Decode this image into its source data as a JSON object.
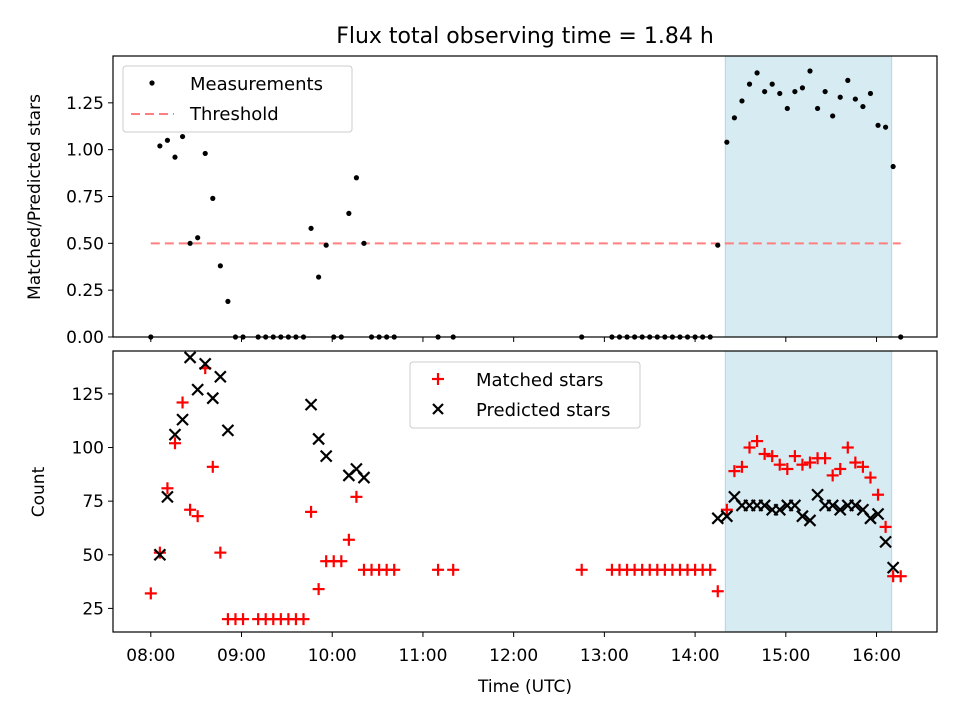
{
  "chart_data": [
    {
      "type": "scatter",
      "title": "Flux total observing time = 1.84 h",
      "ylabel": "Matched/Predicted stars",
      "ylim": [
        0,
        1.5
      ],
      "yticks": [
        "0.00",
        "0.25",
        "0.50",
        "0.75",
        "1.00",
        "1.25"
      ],
      "threshold": 0.5,
      "highlight_span": [
        "14:20",
        "16:10"
      ],
      "legend": {
        "placement": "top-left",
        "entries": [
          "Measurements",
          "Threshold"
        ]
      },
      "series": [
        {
          "name": "Measurements",
          "points": [
            [
              "08:00",
              0.0
            ],
            [
              "08:06",
              1.02
            ],
            [
              "08:11",
              1.05
            ],
            [
              "08:16",
              0.96
            ],
            [
              "08:21",
              1.07
            ],
            [
              "08:26",
              0.5
            ],
            [
              "08:31",
              0.53
            ],
            [
              "08:36",
              0.98
            ],
            [
              "08:41",
              0.74
            ],
            [
              "08:46",
              0.38
            ],
            [
              "08:51",
              0.19
            ],
            [
              "08:56",
              0.0
            ],
            [
              "09:01",
              0.0
            ],
            [
              "09:11",
              0.0
            ],
            [
              "09:16",
              0.0
            ],
            [
              "09:21",
              0.0
            ],
            [
              "09:26",
              0.0
            ],
            [
              "09:31",
              0.0
            ],
            [
              "09:36",
              0.0
            ],
            [
              "09:41",
              0.0
            ],
            [
              "09:46",
              0.58
            ],
            [
              "09:51",
              0.32
            ],
            [
              "09:56",
              0.49
            ],
            [
              "10:01",
              0.0
            ],
            [
              "10:06",
              0.0
            ],
            [
              "10:11",
              0.66
            ],
            [
              "10:16",
              0.85
            ],
            [
              "10:21",
              0.5
            ],
            [
              "10:26",
              0.0
            ],
            [
              "10:31",
              0.0
            ],
            [
              "10:36",
              0.0
            ],
            [
              "10:41",
              0.0
            ],
            [
              "11:10",
              0.0
            ],
            [
              "11:20",
              0.0
            ],
            [
              "12:45",
              0.0
            ],
            [
              "13:05",
              0.0
            ],
            [
              "13:10",
              0.0
            ],
            [
              "13:15",
              0.0
            ],
            [
              "13:20",
              0.0
            ],
            [
              "13:25",
              0.0
            ],
            [
              "13:30",
              0.0
            ],
            [
              "13:35",
              0.0
            ],
            [
              "13:40",
              0.0
            ],
            [
              "13:45",
              0.0
            ],
            [
              "13:50",
              0.0
            ],
            [
              "13:55",
              0.0
            ],
            [
              "14:00",
              0.0
            ],
            [
              "14:05",
              0.0
            ],
            [
              "14:10",
              0.0
            ],
            [
              "14:15",
              0.49
            ],
            [
              "14:21",
              1.04
            ],
            [
              "14:26",
              1.17
            ],
            [
              "14:31",
              1.26
            ],
            [
              "14:36",
              1.35
            ],
            [
              "14:41",
              1.41
            ],
            [
              "14:46",
              1.31
            ],
            [
              "14:51",
              1.35
            ],
            [
              "14:56",
              1.3
            ],
            [
              "15:01",
              1.22
            ],
            [
              "15:06",
              1.31
            ],
            [
              "15:11",
              1.33
            ],
            [
              "15:16",
              1.42
            ],
            [
              "15:21",
              1.22
            ],
            [
              "15:26",
              1.31
            ],
            [
              "15:31",
              1.18
            ],
            [
              "15:36",
              1.28
            ],
            [
              "15:41",
              1.37
            ],
            [
              "15:46",
              1.27
            ],
            [
              "15:51",
              1.23
            ],
            [
              "15:56",
              1.3
            ],
            [
              "16:01",
              1.13
            ],
            [
              "16:06",
              1.12
            ],
            [
              "16:11",
              0.91
            ],
            [
              "16:16",
              0.0
            ]
          ]
        }
      ]
    },
    {
      "type": "scatter",
      "ylabel": "Count",
      "xlabel": "Time (UTC)",
      "ylim": [
        14,
        145
      ],
      "yticks": [
        "25",
        "50",
        "75",
        "100",
        "125"
      ],
      "xticks": [
        "08:00",
        "09:00",
        "10:00",
        "11:00",
        "12:00",
        "13:00",
        "14:00",
        "15:00",
        "16:00"
      ],
      "xlim": [
        "07:35",
        "16:40"
      ],
      "highlight_span": [
        "14:20",
        "16:10"
      ],
      "legend": {
        "placement": "top-center",
        "entries": [
          "Matched stars",
          "Predicted stars"
        ]
      },
      "series": [
        {
          "name": "Matched stars",
          "color": "#ff0000",
          "marker": "+",
          "points": [
            [
              "08:00",
              32
            ],
            [
              "08:06",
              51
            ],
            [
              "08:11",
              81
            ],
            [
              "08:16",
              102
            ],
            [
              "08:21",
              121
            ],
            [
              "08:26",
              71
            ],
            [
              "08:31",
              68
            ],
            [
              "08:36",
              137
            ],
            [
              "08:41",
              91
            ],
            [
              "08:46",
              51
            ],
            [
              "08:51",
              20
            ],
            [
              "08:56",
              20
            ],
            [
              "09:01",
              20
            ],
            [
              "09:11",
              20
            ],
            [
              "09:16",
              20
            ],
            [
              "09:21",
              20
            ],
            [
              "09:26",
              20
            ],
            [
              "09:31",
              20
            ],
            [
              "09:36",
              20
            ],
            [
              "09:41",
              20
            ],
            [
              "09:46",
              70
            ],
            [
              "09:51",
              34
            ],
            [
              "09:56",
              47
            ],
            [
              "10:01",
              47
            ],
            [
              "10:06",
              47
            ],
            [
              "10:11",
              57
            ],
            [
              "10:16",
              77
            ],
            [
              "10:21",
              43
            ],
            [
              "10:26",
              43
            ],
            [
              "10:31",
              43
            ],
            [
              "10:36",
              43
            ],
            [
              "10:41",
              43
            ],
            [
              "11:10",
              43
            ],
            [
              "11:20",
              43
            ],
            [
              "12:45",
              43
            ],
            [
              "13:05",
              43
            ],
            [
              "13:10",
              43
            ],
            [
              "13:15",
              43
            ],
            [
              "13:20",
              43
            ],
            [
              "13:25",
              43
            ],
            [
              "13:30",
              43
            ],
            [
              "13:35",
              43
            ],
            [
              "13:40",
              43
            ],
            [
              "13:45",
              43
            ],
            [
              "13:50",
              43
            ],
            [
              "13:55",
              43
            ],
            [
              "14:00",
              43
            ],
            [
              "14:05",
              43
            ],
            [
              "14:10",
              43
            ],
            [
              "14:15",
              33
            ],
            [
              "14:21",
              71
            ],
            [
              "14:26",
              89
            ],
            [
              "14:31",
              91
            ],
            [
              "14:36",
              100
            ],
            [
              "14:41",
              103
            ],
            [
              "14:46",
              97
            ],
            [
              "14:51",
              96
            ],
            [
              "14:56",
              92
            ],
            [
              "15:01",
              90
            ],
            [
              "15:06",
              96
            ],
            [
              "15:11",
              92
            ],
            [
              "15:16",
              93
            ],
            [
              "15:21",
              95
            ],
            [
              "15:26",
              95
            ],
            [
              "15:31",
              87
            ],
            [
              "15:36",
              90
            ],
            [
              "15:41",
              100
            ],
            [
              "15:46",
              93
            ],
            [
              "15:51",
              91
            ],
            [
              "15:56",
              86
            ],
            [
              "16:01",
              78
            ],
            [
              "16:06",
              63
            ],
            [
              "16:11",
              40
            ],
            [
              "16:16",
              40
            ]
          ]
        },
        {
          "name": "Predicted stars",
          "color": "#000000",
          "marker": "x",
          "points": [
            [
              "08:06",
              50
            ],
            [
              "08:11",
              77
            ],
            [
              "08:16",
              106
            ],
            [
              "08:21",
              113
            ],
            [
              "08:26",
              142
            ],
            [
              "08:31",
              127
            ],
            [
              "08:36",
              139
            ],
            [
              "08:41",
              123
            ],
            [
              "08:46",
              133
            ],
            [
              "08:51",
              108
            ],
            [
              "09:46",
              120
            ],
            [
              "09:51",
              104
            ],
            [
              "09:56",
              96
            ],
            [
              "10:11",
              87
            ],
            [
              "10:16",
              90
            ],
            [
              "10:21",
              86
            ],
            [
              "14:15",
              67
            ],
            [
              "14:21",
              68
            ],
            [
              "14:26",
              77
            ],
            [
              "14:31",
              73
            ],
            [
              "14:36",
              73
            ],
            [
              "14:41",
              73
            ],
            [
              "14:46",
              73
            ],
            [
              "14:51",
              71
            ],
            [
              "14:56",
              71
            ],
            [
              "15:01",
              73
            ],
            [
              "15:06",
              73
            ],
            [
              "15:11",
              68
            ],
            [
              "15:16",
              66
            ],
            [
              "15:21",
              78
            ],
            [
              "15:26",
              73
            ],
            [
              "15:31",
              73
            ],
            [
              "15:36",
              71
            ],
            [
              "15:41",
              73
            ],
            [
              "15:46",
              73
            ],
            [
              "15:51",
              71
            ],
            [
              "15:56",
              67
            ],
            [
              "16:01",
              69
            ],
            [
              "16:06",
              56
            ],
            [
              "16:11",
              44
            ]
          ]
        }
      ]
    }
  ],
  "colors": {
    "highlight": "#add8e6",
    "threshold": "#ff7f7f",
    "measurement": "#000000",
    "matched": "#ff0000",
    "predicted": "#000000"
  }
}
